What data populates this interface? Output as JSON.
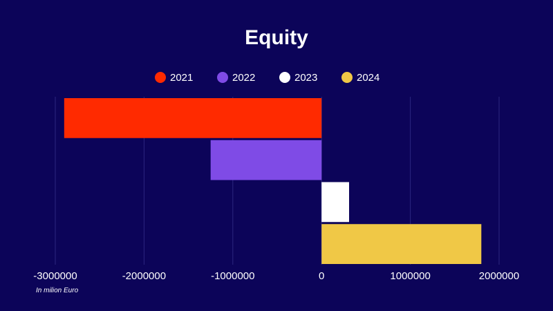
{
  "chart_data": {
    "type": "bar",
    "orientation": "horizontal",
    "title": "Equity",
    "xlabel": "",
    "ylabel": "",
    "xlim": [
      -3000000,
      2000000
    ],
    "ticks": [
      -3000000,
      -2000000,
      -1000000,
      0,
      1000000,
      2000000
    ],
    "tick_labels": [
      "-3000000",
      "-2000000",
      "-1000000",
      "0",
      "1000000",
      "2000000"
    ],
    "grid": true,
    "legend_position": "top-center",
    "note": "In milion Euro",
    "series": [
      {
        "name": "2021",
        "value": -2900000,
        "color": "#ff2a00"
      },
      {
        "name": "2022",
        "value": -1250000,
        "color": "#7f4be6"
      },
      {
        "name": "2023",
        "value": 310000,
        "color": "#ffffff"
      },
      {
        "name": "2024",
        "value": 1800000,
        "color": "#f0c846"
      }
    ],
    "background": "#0c0459"
  }
}
